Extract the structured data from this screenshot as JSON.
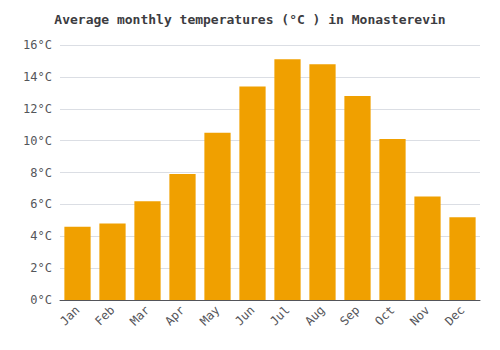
{
  "chart_data": {
    "type": "bar",
    "title": "Average monthly temperatures (°C ) in Monasterevin",
    "categories": [
      "Jan",
      "Feb",
      "Mar",
      "Apr",
      "May",
      "Jun",
      "Jul",
      "Aug",
      "Sep",
      "Oct",
      "Nov",
      "Dec"
    ],
    "values": [
      4.6,
      4.8,
      6.2,
      7.9,
      10.5,
      13.4,
      15.1,
      14.8,
      12.8,
      10.1,
      6.5,
      5.2
    ],
    "color": "#F0A000",
    "ylim": [
      0,
      16
    ],
    "yticks": [
      {
        "value": 0,
        "label": "0°C"
      },
      {
        "value": 2,
        "label": "2°C"
      },
      {
        "value": 4,
        "label": "4°C"
      },
      {
        "value": 6,
        "label": "6°C"
      },
      {
        "value": 8,
        "label": "8°C"
      },
      {
        "value": 10,
        "label": "10°C"
      },
      {
        "value": 12,
        "label": "12°C"
      },
      {
        "value": 14,
        "label": "14°C"
      },
      {
        "value": 16,
        "label": "16°C"
      }
    ],
    "grid": true
  }
}
